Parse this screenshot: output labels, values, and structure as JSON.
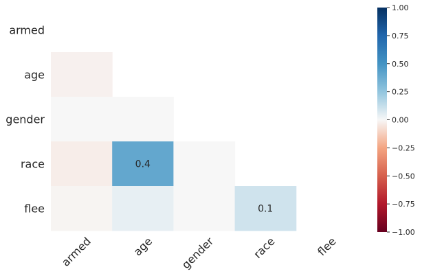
{
  "chart_data": {
    "type": "heatmap",
    "mask": "upper-triangle-including-diagonal",
    "rows": [
      "armed",
      "age",
      "gender",
      "race",
      "flee"
    ],
    "columns": [
      "armed",
      "age",
      "gender",
      "race",
      "flee"
    ],
    "values": [
      [
        null,
        null,
        null,
        null,
        null
      ],
      [
        -0.02,
        null,
        null,
        null,
        null
      ],
      [
        0.0,
        0.0,
        null,
        null,
        null
      ],
      [
        -0.03,
        0.4,
        0.0,
        null,
        null
      ],
      [
        -0.01,
        0.04,
        0.0,
        0.1,
        null
      ]
    ],
    "annotations": [
      {
        "row": 3,
        "col": 1,
        "text": "0.4"
      },
      {
        "row": 4,
        "col": 3,
        "text": "0.1"
      }
    ],
    "colorbar": {
      "colormap": "RdBu",
      "vmin": -1,
      "vmax": 1,
      "ticks": [
        1.0,
        0.75,
        0.5,
        0.25,
        0.0,
        -0.25,
        -0.5,
        -0.75,
        -1.0
      ],
      "tick_labels": [
        "1.00",
        "0.75",
        "0.50",
        "0.25",
        "0.00",
        "−0.25",
        "−0.50",
        "−0.75",
        "−1.00"
      ],
      "colors": {
        "-1.0": "#67001f",
        "-0.75": "#b2182b",
        "-0.5": "#d6604d",
        "-0.25": "#f4a582",
        "0.0": "#f7f7f7",
        "0.25": "#92c5de",
        "0.5": "#4393c3",
        "0.75": "#2166ac",
        "1.0": "#053061"
      }
    },
    "grid": false,
    "background": "#ffffff"
  }
}
